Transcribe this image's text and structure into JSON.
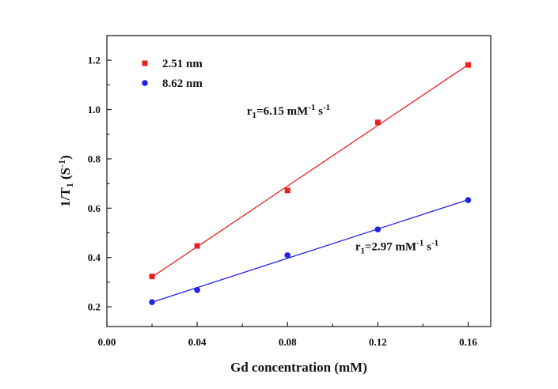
{
  "chart_data": {
    "type": "scatter",
    "xlabel": "Gd concentration (mM)",
    "ylabel": {
      "main": "1/T",
      "sub": "1",
      "paren_open": " (S",
      "sup": "-1",
      "paren_close": ")"
    },
    "xlim": [
      0.0,
      0.17
    ],
    "ylim": [
      0.12,
      1.3
    ],
    "x_ticks": [
      0.0,
      0.04,
      0.08,
      0.12,
      0.16
    ],
    "x_tick_labels": [
      "0.00",
      "0.04",
      "0.08",
      "0.12",
      "0.16"
    ],
    "y_ticks": [
      0.2,
      0.4,
      0.6,
      0.8,
      1.0,
      1.2
    ],
    "y_tick_labels": [
      "0.2",
      "0.4",
      "0.6",
      "0.8",
      "1.0",
      "1.2"
    ],
    "legend_position": "top-left",
    "grid": false,
    "series": [
      {
        "name": "2.51 nm",
        "marker": "square",
        "color": "#e8231f",
        "x": [
          0.02,
          0.04,
          0.08,
          0.12,
          0.16
        ],
        "y": [
          0.323,
          0.447,
          0.672,
          0.948,
          1.181
        ],
        "fit": {
          "slope": 6.15,
          "x_range": [
            0.02,
            0.16
          ]
        },
        "annotation": {
          "prefix": "r",
          "sub": "1",
          "mid": "=6.15 mM",
          "sup1": "-1",
          "gap": " s",
          "sup2": "-1",
          "at_x": 0.062,
          "at_y": 0.98
        }
      },
      {
        "name": "8.62 nm",
        "marker": "circle",
        "color": "#2323e0",
        "x": [
          0.02,
          0.04,
          0.08,
          0.12,
          0.16
        ],
        "y": [
          0.219,
          0.268,
          0.409,
          0.514,
          0.633
        ],
        "fit": {
          "slope": 2.97,
          "x_range": [
            0.02,
            0.16
          ]
        },
        "annotation": {
          "prefix": "r",
          "sub": "1",
          "mid": "=2.97 mM",
          "sup1": "-1",
          "gap": " s",
          "sup2": "-1",
          "at_x": 0.11,
          "at_y": 0.43
        }
      }
    ]
  }
}
